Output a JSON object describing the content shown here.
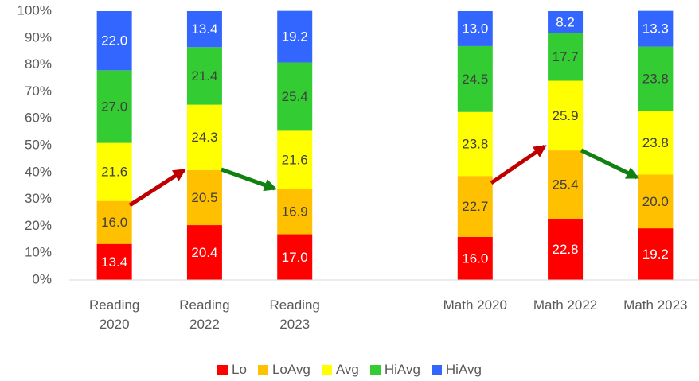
{
  "chart_data": {
    "type": "bar",
    "stacked": true,
    "categories": [
      "Reading 2020",
      "Reading 2022",
      "Reading 2023",
      null,
      "Math 2020",
      "Math 2022",
      "Math 2023"
    ],
    "series": [
      {
        "name": "Lo",
        "color": "#ff0000",
        "label_color": "#ffffff",
        "values": [
          13.4,
          20.4,
          17,
          null,
          16,
          22.8,
          19.2
        ],
        "value_labels": [
          "13.4",
          "20.4",
          "17.0",
          null,
          "16.0",
          "22.8",
          "19.2"
        ]
      },
      {
        "name": "LoAvg",
        "color": "#ffc000",
        "label_color": "#404040",
        "values": [
          16,
          20.5,
          16.9,
          null,
          22.7,
          25.4,
          20
        ],
        "value_labels": [
          "16.0",
          "20.5",
          "16.9",
          null,
          "22.7",
          "25.4",
          "20.0"
        ]
      },
      {
        "name": "Avg",
        "color": "#ffff00",
        "label_color": "#404040",
        "values": [
          21.6,
          24.3,
          21.6,
          null,
          23.8,
          25.9,
          23.8
        ],
        "value_labels": [
          "21.6",
          "24.3",
          "21.6",
          null,
          "23.8",
          "25.9",
          "23.8"
        ]
      },
      {
        "name": "HiAvg",
        "color": "#33cc33",
        "label_color": "#404040",
        "values": [
          27,
          21.4,
          25.4,
          null,
          24.5,
          17.7,
          23.8
        ],
        "value_labels": [
          "27.0",
          "21.4",
          "25.4",
          null,
          "24.5",
          "17.7",
          "23.8"
        ]
      },
      {
        "name": "HiAvg",
        "color": "#3366ff",
        "label_color": "#ffffff",
        "values": [
          22,
          13.4,
          19.2,
          null,
          13,
          8.2,
          13.3
        ],
        "value_labels": [
          "22.0",
          "13.4",
          "19.2",
          null,
          "13.0",
          "8.2",
          "13.3"
        ]
      }
    ],
    "ylim": [
      0,
      100
    ],
    "yticks": [
      {
        "value": 0,
        "label": "0%"
      },
      {
        "value": 10,
        "label": "10%"
      },
      {
        "value": 20,
        "label": "20%"
      },
      {
        "value": 30,
        "label": "30%"
      },
      {
        "value": 40,
        "label": "40%"
      },
      {
        "value": 50,
        "label": "50%"
      },
      {
        "value": 60,
        "label": "60%"
      },
      {
        "value": 70,
        "label": "70%"
      },
      {
        "value": 80,
        "label": "80%"
      },
      {
        "value": 90,
        "label": "90%"
      },
      {
        "value": 100,
        "label": "100%"
      }
    ],
    "grid": false,
    "legend": "bottom"
  }
}
